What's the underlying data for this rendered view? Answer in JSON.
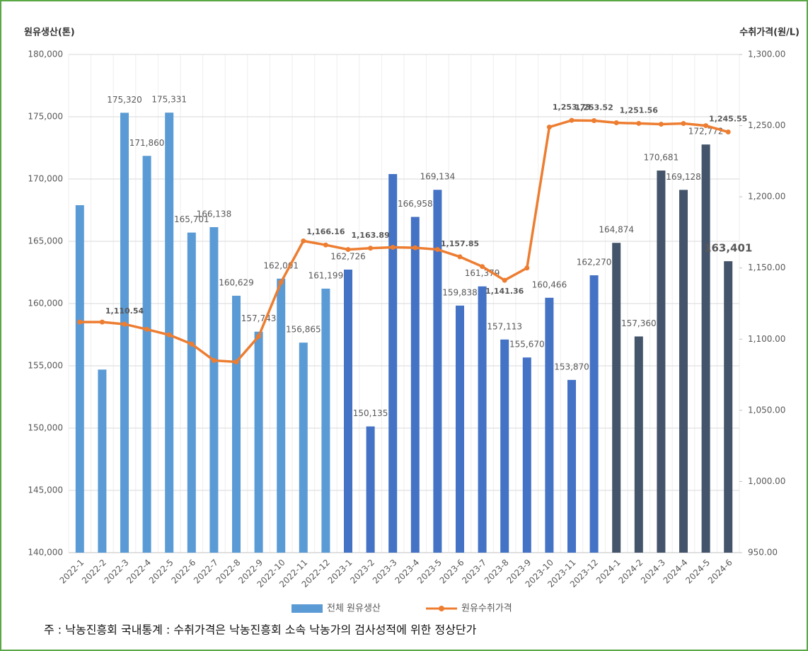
{
  "chart_data": {
    "type": "bar",
    "y_label": "원유생산(톤)",
    "y2_label": "수취가격(원/L)",
    "note": "주 : 낙농진흥회 국내통계 : 수취가격은 낙농진흥회 소속 낙농가의 검사성적에 위한 정상단가",
    "categories": [
      "2022-1",
      "2022-2",
      "2022-3",
      "2022-4",
      "2022-5",
      "2022-6",
      "2022-7",
      "2022-8",
      "2022-9",
      "2022-10",
      "2022-11",
      "2022-12",
      "2023-1",
      "2023-2",
      "2023-3",
      "2023-4",
      "2023-5",
      "2023-6",
      "2023-7",
      "2023-8",
      "2023-9",
      "2023-10",
      "2023-11",
      "2023-12",
      "2024-1",
      "2024-2",
      "2024-3",
      "2024-4",
      "2024-5",
      "2024-6"
    ],
    "series": [
      {
        "name": "전체 원유생산",
        "type": "bar",
        "color": "#5b9bd5",
        "colors": [
          "#5b9bd5",
          "#5b9bd5",
          "#5b9bd5",
          "#5b9bd5",
          "#5b9bd5",
          "#5b9bd5",
          "#5b9bd5",
          "#5b9bd5",
          "#5b9bd5",
          "#5b9bd5",
          "#5b9bd5",
          "#5b9bd5",
          "#4472c4",
          "#4472c4",
          "#4472c4",
          "#4472c4",
          "#4472c4",
          "#4472c4",
          "#4472c4",
          "#4472c4",
          "#4472c4",
          "#4472c4",
          "#4472c4",
          "#4472c4",
          "#44546a",
          "#44546a",
          "#44546a",
          "#44546a",
          "#44546a",
          "#44546a"
        ],
        "values": [
          167900,
          154700,
          175320,
          171860,
          175331,
          165701,
          166138,
          160629,
          157743,
          162001,
          156865,
          161199,
          162726,
          150135,
          170400,
          166958,
          169134,
          159838,
          161379,
          157113,
          155670,
          160466,
          153870,
          162270,
          164874,
          157360,
          170681,
          169128,
          172772,
          163401
        ],
        "value_labels": [
          null,
          null,
          "175,320",
          "171,860",
          "175,331",
          "165,701",
          "166,138",
          "160,629",
          "157,743",
          "162,001",
          "156,865",
          "161,199",
          "162,726",
          "150,135",
          null,
          "166,958",
          "169,134",
          "159,838",
          "161,379",
          "157,113",
          "155,670",
          "160,466",
          "153,870",
          "162,270",
          "164,874",
          "157,360",
          "170,681",
          "169,128",
          "172,772",
          "163,401"
        ]
      },
      {
        "name": "원유수취가격",
        "type": "line",
        "axis": "y2",
        "color": "#ed7d31",
        "values": [
          1112,
          1112,
          1110.54,
          1106.9,
          1103,
          1096.6,
          1085,
          1084,
          1102,
          1140,
          1169,
          1166.16,
          1163,
          1163.89,
          1164.5,
          1164.2,
          1163,
          1157.85,
          1151,
          1141.36,
          1150,
          1249,
          1253.73,
          1253.52,
          1252,
          1251.56,
          1251,
          1251.5,
          1250,
          1245.55
        ],
        "value_labels": [
          null,
          null,
          "1,110.54",
          null,
          null,
          null,
          null,
          null,
          null,
          null,
          null,
          "1,166.16",
          null,
          "1,163.89",
          null,
          null,
          null,
          "1,157.85",
          null,
          "1,141.36",
          null,
          null,
          "1,253.73",
          "1,253.52",
          null,
          "1,251.56",
          null,
          null,
          null,
          "1,245.55"
        ]
      }
    ],
    "ylim": [
      140000,
      180000
    ],
    "yticks": [
      {
        "value": 140000,
        "label": "140,000"
      },
      {
        "value": 145000,
        "label": "145,000"
      },
      {
        "value": 150000,
        "label": "150,000"
      },
      {
        "value": 155000,
        "label": "155,000"
      },
      {
        "value": 160000,
        "label": "160,000"
      },
      {
        "value": 165000,
        "label": "165,000"
      },
      {
        "value": 170000,
        "label": "170,000"
      },
      {
        "value": 175000,
        "label": "175,000"
      },
      {
        "value": 180000,
        "label": "180,000"
      }
    ],
    "y2lim": [
      950,
      1300
    ],
    "y2ticks": [
      {
        "value": 950,
        "label": "950.00"
      },
      {
        "value": 1000,
        "label": "1,000.00"
      },
      {
        "value": 1050,
        "label": "1,050.00"
      },
      {
        "value": 1100,
        "label": "1,100.00"
      },
      {
        "value": 1150,
        "label": "1,150.00"
      },
      {
        "value": 1200,
        "label": "1,200.00"
      },
      {
        "value": 1250,
        "label": "1,250.00"
      },
      {
        "value": 1300,
        "label": "1,300.00"
      }
    ],
    "grid": true,
    "legend": "bottom"
  }
}
